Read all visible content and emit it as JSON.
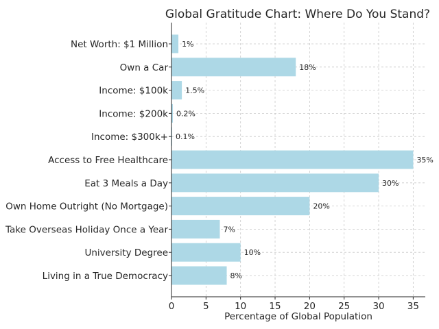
{
  "chart_data": {
    "type": "bar",
    "orientation": "horizontal",
    "title": "Global Gratitude Chart: Where Do You Stand?",
    "xlabel": "Percentage of Global Population",
    "ylabel": "",
    "xlim": [
      0,
      36.75
    ],
    "xticks": [
      0,
      5,
      10,
      15,
      20,
      25,
      30,
      35
    ],
    "grid": true,
    "bar_color": "#add8e6",
    "categories": [
      "Net Worth: $1 Million",
      "Own a Car",
      "Income: $100k",
      "Income: $200k",
      "Income: $300k+",
      "Access to Free Healthcare",
      "Eat 3 Meals a Day",
      "Own Home Outright (No Mortgage)",
      "Take Overseas Holiday Once a Year",
      "University Degree",
      "Living in a True Democracy"
    ],
    "values": [
      1,
      18,
      1.5,
      0.2,
      0.1,
      35,
      30,
      20,
      7,
      10,
      8
    ],
    "data_labels": [
      "1%",
      "18%",
      "1.5%",
      "0.2%",
      "0.1%",
      "35%",
      "30%",
      "20%",
      "7%",
      "10%",
      "8%"
    ]
  }
}
